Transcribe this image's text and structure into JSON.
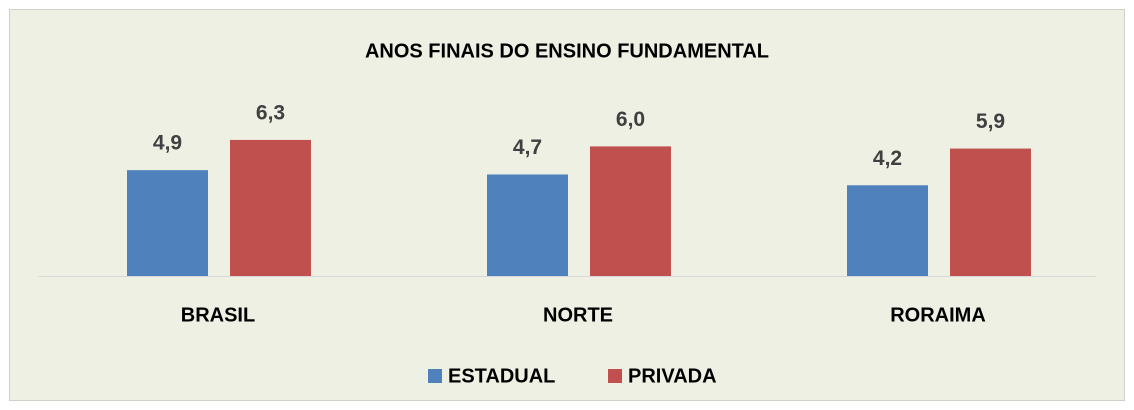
{
  "chart_data": {
    "type": "bar",
    "title": "ANOS FINAIS DO ENSINO FUNDAMENTAL",
    "categories": [
      "BRASIL",
      "NORTE",
      "RORAIMA"
    ],
    "series": [
      {
        "name": "ESTADUAL",
        "color": "#4f81bd",
        "values": [
          4.9,
          4.7,
          4.2
        ],
        "value_labels": [
          "4,9",
          "4,7",
          "4,2"
        ]
      },
      {
        "name": "PRIVADA",
        "color": "#c0504d",
        "values": [
          6.3,
          6.0,
          5.9
        ],
        "value_labels": [
          "6,3",
          "6,0",
          "5,9"
        ]
      }
    ],
    "ylim": [
      0,
      10
    ]
  }
}
